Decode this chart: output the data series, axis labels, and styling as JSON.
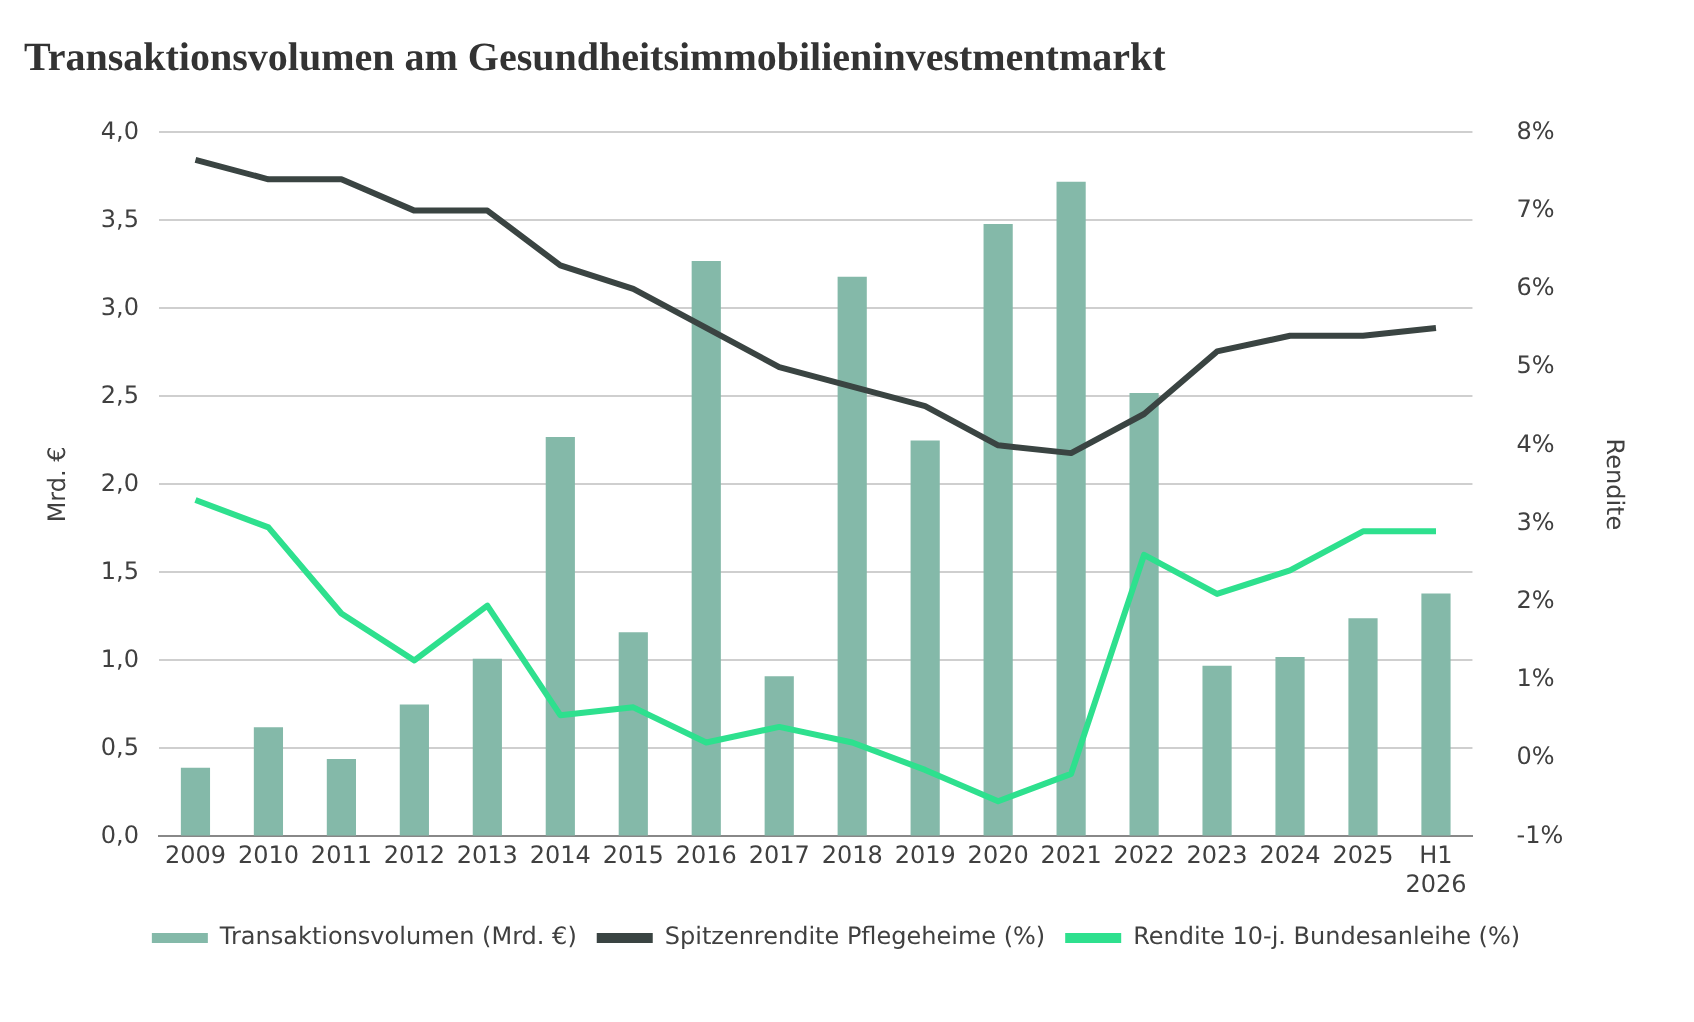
{
  "chart_data": {
    "type": "bar",
    "title": "Transaktionsvolumen am Gesundheitsimmobilieninvestmentmarkt",
    "categories": [
      "2009",
      "2010",
      "2011",
      "2012",
      "2013",
      "2014",
      "2015",
      "2016",
      "2017",
      "2018",
      "2019",
      "2020",
      "2021",
      "2022",
      "2023",
      "2024",
      "2025",
      "H1\n2026"
    ],
    "series": [
      {
        "name": "Transaktionsvolumen (Mrd. €)",
        "color": "#84b9a9",
        "values": [
          0.39,
          0.62,
          0.44,
          0.75,
          1.01,
          2.27,
          1.16,
          3.27,
          0.91,
          3.18,
          2.25,
          3.48,
          3.72,
          2.52,
          0.97,
          1.02,
          1.24,
          1.38
        ]
      },
      {
        "name": "Spitzenrendite Pflegeheime (%)",
        "type": "line",
        "axis": "y2",
        "color": "#3a4442",
        "values": [
          7.65,
          7.4,
          7.4,
          7.0,
          7.0,
          6.3,
          6.0,
          5.5,
          5.0,
          4.75,
          4.5,
          4.0,
          3.9,
          4.4,
          5.2,
          5.4,
          5.4,
          5.5
        ]
      },
      {
        "name": "Rendite 10-j. Bundesanleihe (%)",
        "type": "line",
        "axis": "y2",
        "color": "#2ee08e",
        "values": [
          3.3,
          2.95,
          1.85,
          1.25,
          1.95,
          0.55,
          0.65,
          0.2,
          0.4,
          0.2,
          -0.15,
          -0.55,
          -0.2,
          2.6,
          2.1,
          2.4,
          2.9,
          2.9
        ]
      }
    ],
    "ylabel": "Mrd. €",
    "y2label": "Rendite",
    "ylim": [
      0,
      4
    ],
    "yticks": [
      {
        "value": 0,
        "label": "0,0"
      },
      {
        "value": 0.5,
        "label": "0,5"
      },
      {
        "value": 1,
        "label": "1,0"
      },
      {
        "value": 1.5,
        "label": "1,5"
      },
      {
        "value": 2,
        "label": "2,0"
      },
      {
        "value": 2.5,
        "label": "2,5"
      },
      {
        "value": 3,
        "label": "3,0"
      },
      {
        "value": 3.5,
        "label": "3,5"
      },
      {
        "value": 4,
        "label": "4,0"
      }
    ],
    "y2lim": [
      -1,
      8
    ],
    "y2ticks": [
      {
        "value": -1,
        "label": "-1%"
      },
      {
        "value": 0,
        "label": "0%"
      },
      {
        "value": 1,
        "label": "1%"
      },
      {
        "value": 2,
        "label": "2%"
      },
      {
        "value": 3,
        "label": "3%"
      },
      {
        "value": 4,
        "label": "4%"
      },
      {
        "value": 5,
        "label": "5%"
      },
      {
        "value": 6,
        "label": "6%"
      },
      {
        "value": 7,
        "label": "7%"
      },
      {
        "value": 8,
        "label": "8%"
      }
    ],
    "grid": "y",
    "legend": "bottom",
    "marker": "none",
    "line_style": "solid"
  }
}
